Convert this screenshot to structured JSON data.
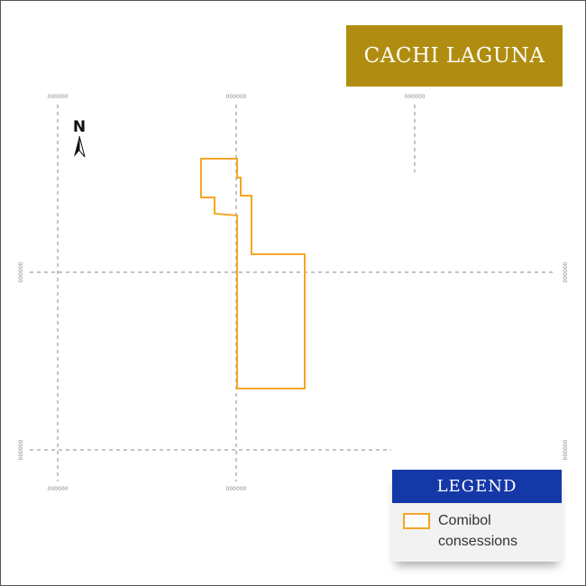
{
  "map": {
    "title": "CACHI LAGUNA",
    "north_label": "N",
    "grid_labels": {
      "top": [
        "000000",
        "000000",
        "000000"
      ],
      "bottom": [
        "000000",
        "000000"
      ],
      "left": [
        "000000",
        "000000"
      ],
      "right": [
        "000000",
        "000000"
      ]
    },
    "colors": {
      "title_background": "#b08d10",
      "title_text": "#ffffff",
      "legend_header_background": "#1538a8",
      "legend_header_text": "#ffffff",
      "concession_outline": "#f5a623",
      "grid": "#8a8a8a"
    }
  },
  "legend": {
    "title": "LEGEND",
    "items": [
      {
        "label": "Comibol consessions",
        "style": "orange-outline"
      }
    ]
  }
}
